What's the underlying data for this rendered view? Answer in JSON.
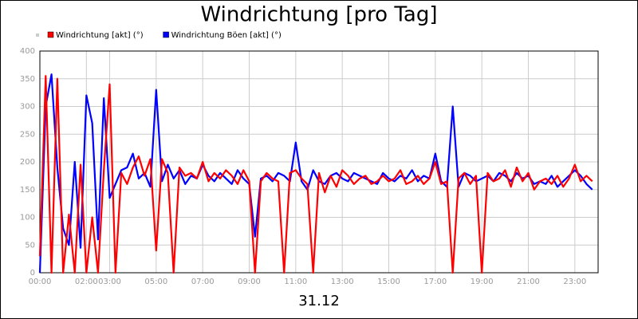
{
  "chart_data": {
    "type": "line",
    "title": "Windrichtung [pro Tag]",
    "xlabel": "31.12",
    "x": [
      0,
      0.25,
      0.5,
      0.75,
      1,
      1.25,
      1.5,
      1.75,
      2,
      2.25,
      2.5,
      2.75,
      3,
      3.25,
      3.5,
      3.75,
      4,
      4.25,
      4.5,
      4.75,
      5,
      5.25,
      5.5,
      5.75,
      6,
      6.25,
      6.5,
      6.75,
      7,
      7.25,
      7.5,
      7.75,
      8,
      8.25,
      8.5,
      8.75,
      9,
      9.25,
      9.5,
      9.75,
      10,
      10.25,
      10.5,
      10.75,
      11,
      11.25,
      11.5,
      11.75,
      12,
      12.25,
      12.5,
      12.75,
      13,
      13.25,
      13.5,
      13.75,
      14,
      14.25,
      14.5,
      14.75,
      15,
      15.25,
      15.5,
      15.75,
      16,
      16.25,
      16.5,
      16.75,
      17,
      17.25,
      17.5,
      17.75,
      18,
      18.25,
      18.5,
      18.75,
      19,
      19.25,
      19.5,
      19.75,
      20,
      20.25,
      20.5,
      20.75,
      21,
      21.25,
      21.5,
      21.75,
      22,
      22.25,
      22.5,
      22.75,
      23,
      23.25,
      23.5,
      23.75
    ],
    "series": [
      {
        "name": "Windrichtung [akt] (°)",
        "color": "#ff0000",
        "values": [
          30,
          355,
          0,
          350,
          0,
          105,
          0,
          195,
          0,
          100,
          0,
          185,
          340,
          0,
          180,
          160,
          190,
          210,
          175,
          205,
          40,
          205,
          180,
          0,
          190,
          175,
          180,
          170,
          200,
          165,
          180,
          170,
          185,
          175,
          160,
          185,
          165,
          0,
          165,
          180,
          170,
          165,
          0,
          180,
          185,
          170,
          160,
          0,
          180,
          145,
          175,
          155,
          185,
          175,
          160,
          170,
          175,
          160,
          165,
          175,
          165,
          170,
          185,
          160,
          165,
          175,
          160,
          170,
          200,
          160,
          165,
          0,
          170,
          180,
          160,
          175,
          0,
          180,
          165,
          170,
          185,
          155,
          190,
          165,
          180,
          150,
          165,
          170,
          160,
          175,
          155,
          170,
          195,
          165,
          175,
          165
        ]
      },
      {
        "name": "Windrichtung Böen [akt] (°)",
        "color": "#0000ff",
        "values": [
          0,
          300,
          358,
          190,
          80,
          50,
          200,
          45,
          320,
          270,
          60,
          315,
          135,
          160,
          185,
          190,
          215,
          170,
          180,
          155,
          330,
          165,
          195,
          170,
          185,
          160,
          175,
          170,
          195,
          175,
          165,
          180,
          170,
          160,
          185,
          170,
          160,
          65,
          170,
          175,
          165,
          180,
          175,
          165,
          235,
          165,
          150,
          185,
          165,
          160,
          175,
          180,
          170,
          165,
          180,
          175,
          170,
          165,
          160,
          180,
          170,
          165,
          175,
          170,
          185,
          165,
          175,
          170,
          215,
          165,
          155,
          300,
          155,
          180,
          175,
          165,
          170,
          175,
          165,
          180,
          175,
          165,
          180,
          170,
          175,
          160,
          165,
          160,
          175,
          155,
          165,
          175,
          185,
          175,
          160,
          150
        ]
      }
    ],
    "xlim": [
      0,
      24
    ],
    "xticks": [
      {
        "value": 0,
        "label": "00:00"
      },
      {
        "value": 2,
        "label": "02:00"
      },
      {
        "value": 3,
        "label": "03:00"
      },
      {
        "value": 5,
        "label": "05:00"
      },
      {
        "value": 7,
        "label": "07:00"
      },
      {
        "value": 9,
        "label": "09:00"
      },
      {
        "value": 11,
        "label": "11:00"
      },
      {
        "value": 13,
        "label": "13:00"
      },
      {
        "value": 15,
        "label": "15:00"
      },
      {
        "value": 17,
        "label": "17:00"
      },
      {
        "value": 19,
        "label": "19:00"
      },
      {
        "value": 21,
        "label": "21:00"
      },
      {
        "value": 23,
        "label": "23:00"
      }
    ],
    "ylim": [
      0,
      400
    ],
    "yticks": [
      0,
      50,
      100,
      150,
      200,
      250,
      300,
      350,
      400
    ],
    "grid": true
  }
}
